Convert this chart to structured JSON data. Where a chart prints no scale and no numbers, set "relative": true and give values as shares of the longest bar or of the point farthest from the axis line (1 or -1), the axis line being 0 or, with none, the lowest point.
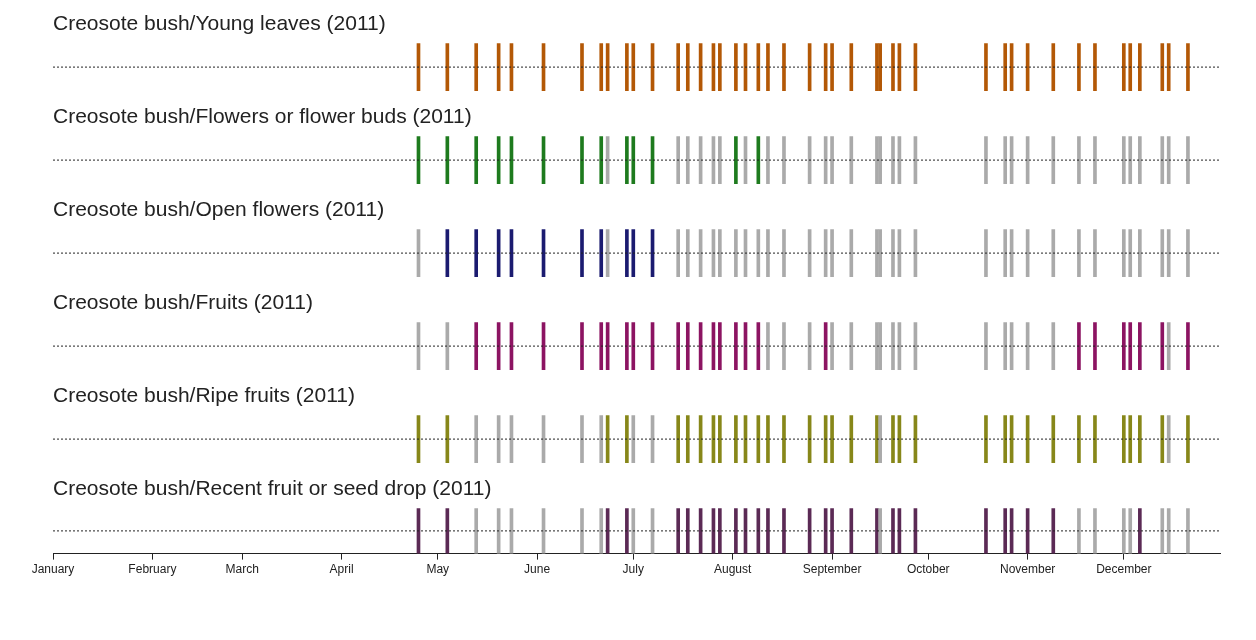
{
  "chart_data": [
    {
      "type": "bar",
      "title": "Creosote bush/Young leaves (2011)",
      "relative": true,
      "tick_labels": false,
      "xlim": [
        "--01-01",
        "--12-31"
      ],
      "xticks": [
        {
          "value": "--01-01",
          "label": "January"
        },
        {
          "value": "--02-01",
          "label": "February"
        },
        {
          "value": "--03-01",
          "label": "March"
        },
        {
          "value": "--04-01",
          "label": "April"
        },
        {
          "value": "--05-01",
          "label": "May"
        },
        {
          "value": "--06-01",
          "label": "June"
        },
        {
          "value": "--07-01",
          "label": "July"
        },
        {
          "value": "--08-01",
          "label": "August"
        },
        {
          "value": "--09-01",
          "label": "September"
        },
        {
          "value": "--10-01",
          "label": "October"
        },
        {
          "value": "--11-01",
          "label": "November"
        },
        {
          "value": "--12-01",
          "label": "December"
        }
      ],
      "ref_lines": [
        {
          "axis": "y",
          "value": 0.5,
          "line_style": "dotted",
          "color": "#222222"
        }
      ],
      "x": [
        "--04-25",
        "--05-04",
        "--05-13",
        "--05-20",
        "--05-24",
        "--06-03",
        "--06-15",
        "--06-21",
        "--06-23",
        "--06-29",
        "--07-01",
        "--07-07",
        "--07-15",
        "--07-18",
        "--07-22",
        "--07-26",
        "--07-28",
        "--08-02",
        "--08-05",
        "--08-09",
        "--08-12",
        "--08-17",
        "--08-25",
        "--08-30",
        "--09-01",
        "--09-07",
        "--09-15",
        "--09-16",
        "--09-20",
        "--09-22",
        "--09-27",
        "--10-19",
        "--10-25",
        "--10-27",
        "--11-01",
        "--11-09",
        "--11-17",
        "--11-22",
        "--12-01",
        "--12-03",
        "--12-06",
        "--12-13",
        "--12-15",
        "--12-21"
      ],
      "values": [
        1,
        1,
        1,
        1,
        1,
        1,
        1,
        1,
        1,
        1,
        1,
        1,
        1,
        1,
        1,
        1,
        1,
        1,
        1,
        1,
        1,
        1,
        1,
        1,
        1,
        1,
        1,
        1,
        1,
        1,
        1,
        1,
        1,
        1,
        1,
        1,
        1,
        1,
        1,
        1,
        1,
        1,
        1,
        1
      ],
      "colors": [
        "#b35806",
        "#b35806",
        "#b35806",
        "#b35806",
        "#b35806",
        "#b35806",
        "#b35806",
        "#b35806",
        "#b35806",
        "#b35806",
        "#b35806",
        "#b35806",
        "#b35806",
        "#b35806",
        "#b35806",
        "#b35806",
        "#b35806",
        "#b35806",
        "#b35806",
        "#b35806",
        "#b35806",
        "#b35806",
        "#b35806",
        "#b35806",
        "#b35806",
        "#b35806",
        "#b35806",
        "#b35806",
        "#b35806",
        "#b35806",
        "#b35806",
        "#b35806",
        "#b35806",
        "#b35806",
        "#b35806",
        "#b35806",
        "#b35806",
        "#b35806",
        "#b35806",
        "#b35806",
        "#b35806",
        "#b35806",
        "#b35806",
        "#b35806"
      ]
    },
    {
      "type": "bar",
      "title": "Creosote bush/Flowers or flower buds (2011)",
      "relative": true,
      "tick_labels": false,
      "xlim": [
        "--01-01",
        "--12-31"
      ],
      "xticks": [
        {
          "value": "--01-01",
          "label": "January"
        },
        {
          "value": "--02-01",
          "label": "February"
        },
        {
          "value": "--03-01",
          "label": "March"
        },
        {
          "value": "--04-01",
          "label": "April"
        },
        {
          "value": "--05-01",
          "label": "May"
        },
        {
          "value": "--06-01",
          "label": "June"
        },
        {
          "value": "--07-01",
          "label": "July"
        },
        {
          "value": "--08-01",
          "label": "August"
        },
        {
          "value": "--09-01",
          "label": "September"
        },
        {
          "value": "--10-01",
          "label": "October"
        },
        {
          "value": "--11-01",
          "label": "November"
        },
        {
          "value": "--12-01",
          "label": "December"
        }
      ],
      "ref_lines": [
        {
          "axis": "y",
          "value": 0.5,
          "line_style": "dotted",
          "color": "#222222"
        }
      ],
      "x": [
        "--04-25",
        "--05-04",
        "--05-13",
        "--05-20",
        "--05-24",
        "--06-03",
        "--06-15",
        "--06-21",
        "--06-23",
        "--06-29",
        "--07-01",
        "--07-07",
        "--07-15",
        "--07-18",
        "--07-22",
        "--07-26",
        "--07-28",
        "--08-02",
        "--08-05",
        "--08-09",
        "--08-12",
        "--08-17",
        "--08-25",
        "--08-30",
        "--09-01",
        "--09-07",
        "--09-15",
        "--09-16",
        "--09-20",
        "--09-22",
        "--09-27",
        "--10-19",
        "--10-25",
        "--10-27",
        "--11-01",
        "--11-09",
        "--11-17",
        "--11-22",
        "--12-01",
        "--12-03",
        "--12-06",
        "--12-13",
        "--12-15",
        "--12-21"
      ],
      "values": [
        1,
        1,
        1,
        1,
        1,
        1,
        1,
        1,
        1,
        1,
        1,
        1,
        1,
        1,
        1,
        1,
        1,
        1,
        1,
        1,
        1,
        1,
        1,
        1,
        1,
        1,
        1,
        1,
        1,
        1,
        1,
        1,
        1,
        1,
        1,
        1,
        1,
        1,
        1,
        1,
        1,
        1,
        1,
        1
      ],
      "colors": [
        "#1e7b1e",
        "#1e7b1e",
        "#1e7b1e",
        "#1e7b1e",
        "#1e7b1e",
        "#1e7b1e",
        "#1e7b1e",
        "#1e7b1e",
        "#aaaaaa",
        "#1e7b1e",
        "#1e7b1e",
        "#1e7b1e",
        "#aaaaaa",
        "#aaaaaa",
        "#aaaaaa",
        "#aaaaaa",
        "#aaaaaa",
        "#1e7b1e",
        "#aaaaaa",
        "#1e7b1e",
        "#aaaaaa",
        "#aaaaaa",
        "#aaaaaa",
        "#aaaaaa",
        "#aaaaaa",
        "#aaaaaa",
        "#aaaaaa",
        "#aaaaaa",
        "#aaaaaa",
        "#aaaaaa",
        "#aaaaaa",
        "#aaaaaa",
        "#aaaaaa",
        "#aaaaaa",
        "#aaaaaa",
        "#aaaaaa",
        "#aaaaaa",
        "#aaaaaa",
        "#aaaaaa",
        "#aaaaaa",
        "#aaaaaa",
        "#aaaaaa",
        "#aaaaaa",
        "#aaaaaa"
      ]
    },
    {
      "type": "bar",
      "title": "Creosote bush/Open flowers (2011)",
      "relative": true,
      "tick_labels": false,
      "xlim": [
        "--01-01",
        "--12-31"
      ],
      "xticks": [
        {
          "value": "--01-01",
          "label": "January"
        },
        {
          "value": "--02-01",
          "label": "February"
        },
        {
          "value": "--03-01",
          "label": "March"
        },
        {
          "value": "--04-01",
          "label": "April"
        },
        {
          "value": "--05-01",
          "label": "May"
        },
        {
          "value": "--06-01",
          "label": "June"
        },
        {
          "value": "--07-01",
          "label": "July"
        },
        {
          "value": "--08-01",
          "label": "August"
        },
        {
          "value": "--09-01",
          "label": "September"
        },
        {
          "value": "--10-01",
          "label": "October"
        },
        {
          "value": "--11-01",
          "label": "November"
        },
        {
          "value": "--12-01",
          "label": "December"
        }
      ],
      "ref_lines": [
        {
          "axis": "y",
          "value": 0.5,
          "line_style": "dotted",
          "color": "#222222"
        }
      ],
      "x": [
        "--04-25",
        "--05-04",
        "--05-13",
        "--05-20",
        "--05-24",
        "--06-03",
        "--06-15",
        "--06-21",
        "--06-23",
        "--06-29",
        "--07-01",
        "--07-07",
        "--07-15",
        "--07-18",
        "--07-22",
        "--07-26",
        "--07-28",
        "--08-02",
        "--08-05",
        "--08-09",
        "--08-12",
        "--08-17",
        "--08-25",
        "--08-30",
        "--09-01",
        "--09-07",
        "--09-15",
        "--09-16",
        "--09-20",
        "--09-22",
        "--09-27",
        "--10-19",
        "--10-25",
        "--10-27",
        "--11-01",
        "--11-09",
        "--11-17",
        "--11-22",
        "--12-01",
        "--12-03",
        "--12-06",
        "--12-13",
        "--12-15",
        "--12-21"
      ],
      "values": [
        1,
        1,
        1,
        1,
        1,
        1,
        1,
        1,
        1,
        1,
        1,
        1,
        1,
        1,
        1,
        1,
        1,
        1,
        1,
        1,
        1,
        1,
        1,
        1,
        1,
        1,
        1,
        1,
        1,
        1,
        1,
        1,
        1,
        1,
        1,
        1,
        1,
        1,
        1,
        1,
        1,
        1,
        1,
        1
      ],
      "colors": [
        "#aaaaaa",
        "#1b1b70",
        "#1b1b70",
        "#1b1b70",
        "#1b1b70",
        "#1b1b70",
        "#1b1b70",
        "#1b1b70",
        "#aaaaaa",
        "#1b1b70",
        "#1b1b70",
        "#1b1b70",
        "#aaaaaa",
        "#aaaaaa",
        "#aaaaaa",
        "#aaaaaa",
        "#aaaaaa",
        "#aaaaaa",
        "#aaaaaa",
        "#aaaaaa",
        "#aaaaaa",
        "#aaaaaa",
        "#aaaaaa",
        "#aaaaaa",
        "#aaaaaa",
        "#aaaaaa",
        "#aaaaaa",
        "#aaaaaa",
        "#aaaaaa",
        "#aaaaaa",
        "#aaaaaa",
        "#aaaaaa",
        "#aaaaaa",
        "#aaaaaa",
        "#aaaaaa",
        "#aaaaaa",
        "#aaaaaa",
        "#aaaaaa",
        "#aaaaaa",
        "#aaaaaa",
        "#aaaaaa",
        "#aaaaaa",
        "#aaaaaa",
        "#aaaaaa"
      ]
    },
    {
      "type": "bar",
      "title": "Creosote bush/Fruits (2011)",
      "relative": true,
      "tick_labels": false,
      "xlim": [
        "--01-01",
        "--12-31"
      ],
      "xticks": [
        {
          "value": "--01-01",
          "label": "January"
        },
        {
          "value": "--02-01",
          "label": "February"
        },
        {
          "value": "--03-01",
          "label": "March"
        },
        {
          "value": "--04-01",
          "label": "April"
        },
        {
          "value": "--05-01",
          "label": "May"
        },
        {
          "value": "--06-01",
          "label": "June"
        },
        {
          "value": "--07-01",
          "label": "July"
        },
        {
          "value": "--08-01",
          "label": "August"
        },
        {
          "value": "--09-01",
          "label": "September"
        },
        {
          "value": "--10-01",
          "label": "October"
        },
        {
          "value": "--11-01",
          "label": "November"
        },
        {
          "value": "--12-01",
          "label": "December"
        }
      ],
      "ref_lines": [
        {
          "axis": "y",
          "value": 0.5,
          "line_style": "dotted",
          "color": "#222222"
        }
      ],
      "x": [
        "--04-25",
        "--05-04",
        "--05-13",
        "--05-20",
        "--05-24",
        "--06-03",
        "--06-15",
        "--06-21",
        "--06-23",
        "--06-29",
        "--07-01",
        "--07-07",
        "--07-15",
        "--07-18",
        "--07-22",
        "--07-26",
        "--07-28",
        "--08-02",
        "--08-05",
        "--08-09",
        "--08-12",
        "--08-17",
        "--08-25",
        "--08-30",
        "--09-01",
        "--09-07",
        "--09-15",
        "--09-16",
        "--09-20",
        "--09-22",
        "--09-27",
        "--10-19",
        "--10-25",
        "--10-27",
        "--11-01",
        "--11-09",
        "--11-17",
        "--11-22",
        "--12-01",
        "--12-03",
        "--12-06",
        "--12-13",
        "--12-15",
        "--12-21"
      ],
      "values": [
        1,
        1,
        1,
        1,
        1,
        1,
        1,
        1,
        1,
        1,
        1,
        1,
        1,
        1,
        1,
        1,
        1,
        1,
        1,
        1,
        1,
        1,
        1,
        1,
        1,
        1,
        1,
        1,
        1,
        1,
        1,
        1,
        1,
        1,
        1,
        1,
        1,
        1,
        1,
        1,
        1,
        1,
        1,
        1
      ],
      "colors": [
        "#aaaaaa",
        "#aaaaaa",
        "#8c1462",
        "#8c1462",
        "#8c1462",
        "#8c1462",
        "#8c1462",
        "#8c1462",
        "#8c1462",
        "#8c1462",
        "#8c1462",
        "#8c1462",
        "#8c1462",
        "#8c1462",
        "#8c1462",
        "#8c1462",
        "#8c1462",
        "#8c1462",
        "#8c1462",
        "#8c1462",
        "#aaaaaa",
        "#aaaaaa",
        "#aaaaaa",
        "#8c1462",
        "#aaaaaa",
        "#aaaaaa",
        "#aaaaaa",
        "#aaaaaa",
        "#aaaaaa",
        "#aaaaaa",
        "#aaaaaa",
        "#aaaaaa",
        "#aaaaaa",
        "#aaaaaa",
        "#aaaaaa",
        "#aaaaaa",
        "#8c1462",
        "#8c1462",
        "#8c1462",
        "#8c1462",
        "#8c1462",
        "#8c1462",
        "#aaaaaa",
        "#8c1462"
      ]
    },
    {
      "type": "bar",
      "title": "Creosote bush/Ripe fruits (2011)",
      "relative": true,
      "tick_labels": false,
      "xlim": [
        "--01-01",
        "--12-31"
      ],
      "xticks": [
        {
          "value": "--01-01",
          "label": "January"
        },
        {
          "value": "--02-01",
          "label": "February"
        },
        {
          "value": "--03-01",
          "label": "March"
        },
        {
          "value": "--04-01",
          "label": "April"
        },
        {
          "value": "--05-01",
          "label": "May"
        },
        {
          "value": "--06-01",
          "label": "June"
        },
        {
          "value": "--07-01",
          "label": "July"
        },
        {
          "value": "--08-01",
          "label": "August"
        },
        {
          "value": "--09-01",
          "label": "September"
        },
        {
          "value": "--10-01",
          "label": "October"
        },
        {
          "value": "--11-01",
          "label": "November"
        },
        {
          "value": "--12-01",
          "label": "December"
        }
      ],
      "ref_lines": [
        {
          "axis": "y",
          "value": 0.5,
          "line_style": "dotted",
          "color": "#222222"
        }
      ],
      "x": [
        "--04-25",
        "--05-04",
        "--05-13",
        "--05-20",
        "--05-24",
        "--06-03",
        "--06-15",
        "--06-21",
        "--06-23",
        "--06-29",
        "--07-01",
        "--07-07",
        "--07-15",
        "--07-18",
        "--07-22",
        "--07-26",
        "--07-28",
        "--08-02",
        "--08-05",
        "--08-09",
        "--08-12",
        "--08-17",
        "--08-25",
        "--08-30",
        "--09-01",
        "--09-07",
        "--09-15",
        "--09-16",
        "--09-20",
        "--09-22",
        "--09-27",
        "--10-19",
        "--10-25",
        "--10-27",
        "--11-01",
        "--11-09",
        "--11-17",
        "--11-22",
        "--12-01",
        "--12-03",
        "--12-06",
        "--12-13",
        "--12-15",
        "--12-21"
      ],
      "values": [
        1,
        1,
        1,
        1,
        1,
        1,
        1,
        1,
        1,
        1,
        1,
        1,
        1,
        1,
        1,
        1,
        1,
        1,
        1,
        1,
        1,
        1,
        1,
        1,
        1,
        1,
        1,
        1,
        1,
        1,
        1,
        1,
        1,
        1,
        1,
        1,
        1,
        1,
        1,
        1,
        1,
        1,
        1,
        1
      ],
      "colors": [
        "#878719",
        "#878719",
        "#aaaaaa",
        "#aaaaaa",
        "#aaaaaa",
        "#aaaaaa",
        "#aaaaaa",
        "#aaaaaa",
        "#878719",
        "#878719",
        "#aaaaaa",
        "#aaaaaa",
        "#878719",
        "#878719",
        "#878719",
        "#878719",
        "#878719",
        "#878719",
        "#878719",
        "#878719",
        "#878719",
        "#878719",
        "#878719",
        "#878719",
        "#878719",
        "#878719",
        "#878719",
        "#aaaaaa",
        "#878719",
        "#878719",
        "#878719",
        "#878719",
        "#878719",
        "#878719",
        "#878719",
        "#878719",
        "#878719",
        "#878719",
        "#878719",
        "#878719",
        "#878719",
        "#878719",
        "#aaaaaa",
        "#878719"
      ]
    },
    {
      "type": "bar",
      "title": "Creosote bush/Recent fruit or seed drop (2011)",
      "relative": true,
      "tick_labels": "x",
      "xlim": [
        "--01-01",
        "--12-31"
      ],
      "xticks": [
        {
          "value": "--01-01",
          "label": "January"
        },
        {
          "value": "--02-01",
          "label": "February"
        },
        {
          "value": "--03-01",
          "label": "March"
        },
        {
          "value": "--04-01",
          "label": "April"
        },
        {
          "value": "--05-01",
          "label": "May"
        },
        {
          "value": "--06-01",
          "label": "June"
        },
        {
          "value": "--07-01",
          "label": "July"
        },
        {
          "value": "--08-01",
          "label": "August"
        },
        {
          "value": "--09-01",
          "label": "September"
        },
        {
          "value": "--10-01",
          "label": "October"
        },
        {
          "value": "--11-01",
          "label": "November"
        },
        {
          "value": "--12-01",
          "label": "December"
        }
      ],
      "ref_lines": [
        {
          "axis": "y",
          "value": 0.5,
          "line_style": "dotted",
          "color": "#222222"
        }
      ],
      "x": [
        "--04-25",
        "--05-04",
        "--05-13",
        "--05-20",
        "--05-24",
        "--06-03",
        "--06-15",
        "--06-21",
        "--06-23",
        "--06-29",
        "--07-01",
        "--07-07",
        "--07-15",
        "--07-18",
        "--07-22",
        "--07-26",
        "--07-28",
        "--08-02",
        "--08-05",
        "--08-09",
        "--08-12",
        "--08-17",
        "--08-25",
        "--08-30",
        "--09-01",
        "--09-07",
        "--09-15",
        "--09-16",
        "--09-20",
        "--09-22",
        "--09-27",
        "--10-19",
        "--10-25",
        "--10-27",
        "--11-01",
        "--11-09",
        "--11-17",
        "--11-22",
        "--12-01",
        "--12-03",
        "--12-06",
        "--12-13",
        "--12-15",
        "--12-21"
      ],
      "values": [
        1,
        1,
        1,
        1,
        1,
        1,
        1,
        1,
        1,
        1,
        1,
        1,
        1,
        1,
        1,
        1,
        1,
        1,
        1,
        1,
        1,
        1,
        1,
        1,
        1,
        1,
        1,
        1,
        1,
        1,
        1,
        1,
        1,
        1,
        1,
        1,
        1,
        1,
        1,
        1,
        1,
        1,
        1,
        1
      ],
      "colors": [
        "#5b2a55",
        "#5b2a55",
        "#aaaaaa",
        "#aaaaaa",
        "#aaaaaa",
        "#aaaaaa",
        "#aaaaaa",
        "#aaaaaa",
        "#5b2a55",
        "#5b2a55",
        "#aaaaaa",
        "#aaaaaa",
        "#5b2a55",
        "#5b2a55",
        "#5b2a55",
        "#5b2a55",
        "#5b2a55",
        "#5b2a55",
        "#5b2a55",
        "#5b2a55",
        "#5b2a55",
        "#5b2a55",
        "#5b2a55",
        "#5b2a55",
        "#5b2a55",
        "#5b2a55",
        "#5b2a55",
        "#aaaaaa",
        "#5b2a55",
        "#5b2a55",
        "#5b2a55",
        "#5b2a55",
        "#5b2a55",
        "#5b2a55",
        "#5b2a55",
        "#5b2a55",
        "#aaaaaa",
        "#aaaaaa",
        "#aaaaaa",
        "#aaaaaa",
        "#5b2a55",
        "#aaaaaa",
        "#aaaaaa",
        "#aaaaaa"
      ]
    }
  ]
}
